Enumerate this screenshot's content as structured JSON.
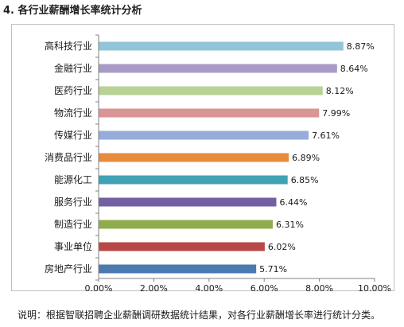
{
  "heading": "4.  各行业薪酬增长率统计分析",
  "note": "说明：根据智联招聘企业薪酬调研数据统计结果，对各行业薪酬增长率进行统计分类。",
  "chart_data": {
    "type": "bar",
    "orientation": "horizontal",
    "title": "",
    "xlabel": "",
    "ylabel": "",
    "xlim": [
      0,
      10
    ],
    "x_ticks": [
      "0.00%",
      "2.00%",
      "4.00%",
      "6.00%",
      "8.00%",
      "10.00%"
    ],
    "grid": false,
    "legend": "none",
    "categories": [
      "高科技行业",
      "金融行业",
      "医药行业",
      "物流行业",
      "传媒行业",
      "消费品行业",
      "能源化工",
      "服务行业",
      "制造行业",
      "事业单位",
      "房地产行业"
    ],
    "values": [
      8.87,
      8.64,
      8.12,
      7.99,
      7.61,
      6.89,
      6.85,
      6.44,
      6.31,
      6.02,
      5.71
    ],
    "value_labels": [
      "8.87%",
      "8.64%",
      "8.12%",
      "7.99%",
      "7.61%",
      "6.89%",
      "6.85%",
      "6.44%",
      "6.31%",
      "6.02%",
      "5.71%"
    ],
    "colors": [
      "#92c5d8",
      "#a89bc6",
      "#b8d296",
      "#d99694",
      "#96adda",
      "#e68c3c",
      "#3fa2b5",
      "#7260a2",
      "#8fac4e",
      "#b74845",
      "#4a7aaf"
    ]
  }
}
